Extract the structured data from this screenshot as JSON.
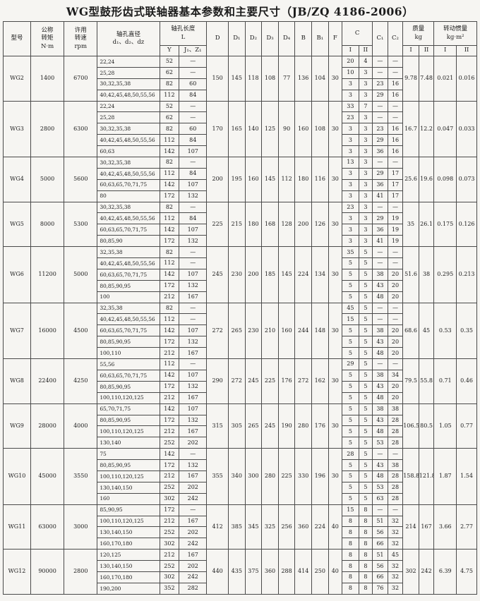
{
  "title": "WG型鼓形齿式联轴器基本参数和主要尺寸",
  "standard": "（JB/ZQ 4186-2006）",
  "columns": {
    "model": "型号",
    "torque": "公称\n转矩\nN·m",
    "speed": "许用\n转速\nrpm",
    "bore_diameter": "轴孔直径\nd₁、d₂、dz",
    "bore_length": "轴孔长度\nL",
    "y": "Y",
    "j_z": "J₁、Z₁",
    "dims": [
      "D",
      "D₁",
      "D₂",
      "D₃",
      "D₄",
      "B",
      "B₁",
      "F"
    ],
    "c": "C",
    "c1": "C₁",
    "c2": "C₂",
    "mass": "质量\nkg",
    "inertia": "转动惯量\nkg·m²",
    "col_i": "I",
    "col_ii": "II"
  },
  "groups": [
    {
      "model": "WG2",
      "torque": "1400",
      "speed": "6700",
      "dims": [
        "150",
        "145",
        "118",
        "108",
        "77",
        "136",
        "104",
        "30"
      ],
      "mass": [
        "9.78",
        "7.48"
      ],
      "inertia": [
        "0.021",
        "0.016"
      ],
      "rows": [
        {
          "d": "22,24",
          "y": "52",
          "j": "—",
          "ci": "20",
          "cii": "4",
          "c1": "—",
          "c2": "—"
        },
        {
          "d": "25,28",
          "y": "62",
          "j": "—",
          "ci": "10",
          "cii": "3",
          "c1": "—",
          "c2": "—"
        },
        {
          "d": "30,32,35,38",
          "y": "82",
          "j": "60",
          "ci": "3",
          "cii": "3",
          "c1": "23",
          "c2": "16"
        },
        {
          "d": "40,42,45,48,50,55,56",
          "y": "112",
          "j": "84",
          "ci": "3",
          "cii": "3",
          "c1": "29",
          "c2": "16"
        }
      ]
    },
    {
      "model": "WG3",
      "torque": "2800",
      "speed": "6300",
      "dims": [
        "170",
        "165",
        "140",
        "125",
        "90",
        "160",
        "108",
        "30"
      ],
      "mass": [
        "16.7",
        "12.2"
      ],
      "inertia": [
        "0.047",
        "0.033"
      ],
      "rows": [
        {
          "d": "22,24",
          "y": "52",
          "j": "—",
          "ci": "33",
          "cii": "7",
          "c1": "—",
          "c2": "—"
        },
        {
          "d": "25,28",
          "y": "62",
          "j": "—",
          "ci": "23",
          "cii": "3",
          "c1": "—",
          "c2": "—"
        },
        {
          "d": "30,32,35,38",
          "y": "82",
          "j": "60",
          "ci": "3",
          "cii": "3",
          "c1": "23",
          "c2": "16"
        },
        {
          "d": "40,42,45,48,50,55,56",
          "y": "112",
          "j": "84",
          "ci": "3",
          "cii": "3",
          "c1": "29",
          "c2": "16"
        },
        {
          "d": "60,63",
          "y": "142",
          "j": "107",
          "ci": "3",
          "cii": "3",
          "c1": "36",
          "c2": "16"
        }
      ]
    },
    {
      "model": "WG4",
      "torque": "5000",
      "speed": "5600",
      "dims": [
        "200",
        "195",
        "160",
        "145",
        "112",
        "180",
        "116",
        "30"
      ],
      "mass": [
        "25.6",
        "19.6"
      ],
      "inertia": [
        "0.098",
        "0.073"
      ],
      "rows": [
        {
          "d": "30,32,35,38",
          "y": "82",
          "j": "—",
          "ci": "13",
          "cii": "3",
          "c1": "—",
          "c2": "—"
        },
        {
          "d": "40,42,45,48,50,55,56",
          "y": "112",
          "j": "84",
          "ci": "3",
          "cii": "3",
          "c1": "29",
          "c2": "17"
        },
        {
          "d": "60,63,65,70,71,75",
          "y": "142",
          "j": "107",
          "ci": "3",
          "cii": "3",
          "c1": "36",
          "c2": "17"
        },
        {
          "d": "80",
          "y": "172",
          "j": "132",
          "ci": "3",
          "cii": "3",
          "c1": "41",
          "c2": "17"
        }
      ]
    },
    {
      "model": "WG5",
      "torque": "8000",
      "speed": "5300",
      "dims": [
        "225",
        "215",
        "180",
        "168",
        "128",
        "200",
        "126",
        "30"
      ],
      "mass": [
        "35",
        "26.1"
      ],
      "inertia": [
        "0.175",
        "0.126"
      ],
      "rows": [
        {
          "d": "30,32,35,38",
          "y": "82",
          "j": "—",
          "ci": "23",
          "cii": "3",
          "c1": "—",
          "c2": "—"
        },
        {
          "d": "40,42,45,48,50,55,56",
          "y": "112",
          "j": "84",
          "ci": "3",
          "cii": "3",
          "c1": "29",
          "c2": "19"
        },
        {
          "d": "60,63,65,70,71,75",
          "y": "142",
          "j": "107",
          "ci": "3",
          "cii": "3",
          "c1": "36",
          "c2": "19"
        },
        {
          "d": "80,85,90",
          "y": "172",
          "j": "132",
          "ci": "3",
          "cii": "3",
          "c1": "41",
          "c2": "19"
        }
      ]
    },
    {
      "model": "WG6",
      "torque": "11200",
      "speed": "5000",
      "dims": [
        "245",
        "230",
        "200",
        "185",
        "145",
        "224",
        "134",
        "30"
      ],
      "mass": [
        "51.6",
        "38"
      ],
      "inertia": [
        "0.295",
        "0.213"
      ],
      "rows": [
        {
          "d": "32,35,38",
          "y": "82",
          "j": "—",
          "ci": "35",
          "cii": "5",
          "c1": "—",
          "c2": "—"
        },
        {
          "d": "40,42,45,48,50,55,56",
          "y": "112",
          "j": "—",
          "ci": "5",
          "cii": "5",
          "c1": "—",
          "c2": "—"
        },
        {
          "d": "60,63,65,70,71,75",
          "y": "142",
          "j": "107",
          "ci": "5",
          "cii": "5",
          "c1": "38",
          "c2": "20"
        },
        {
          "d": "80,85,90,95",
          "y": "172",
          "j": "132",
          "ci": "5",
          "cii": "5",
          "c1": "43",
          "c2": "20"
        },
        {
          "d": "100",
          "y": "212",
          "j": "167",
          "ci": "5",
          "cii": "5",
          "c1": "48",
          "c2": "20"
        }
      ]
    },
    {
      "model": "WG7",
      "torque": "16000",
      "speed": "4500",
      "dims": [
        "272",
        "265",
        "230",
        "210",
        "160",
        "244",
        "148",
        "30"
      ],
      "mass": [
        "68.6",
        "45"
      ],
      "inertia": [
        "0.53",
        "0.35"
      ],
      "rows": [
        {
          "d": "32,35,38",
          "y": "82",
          "j": "—",
          "ci": "45",
          "cii": "5",
          "c1": "—",
          "c2": "—"
        },
        {
          "d": "40,42,45,48,50,55,56",
          "y": "112",
          "j": "—",
          "ci": "15",
          "cii": "5",
          "c1": "—",
          "c2": "—"
        },
        {
          "d": "60,63,65,70,71,75",
          "y": "142",
          "j": "107",
          "ci": "5",
          "cii": "5",
          "c1": "38",
          "c2": "20"
        },
        {
          "d": "80,85,90,95",
          "y": "172",
          "j": "132",
          "ci": "5",
          "cii": "5",
          "c1": "43",
          "c2": "20"
        },
        {
          "d": "100,110",
          "y": "212",
          "j": "167",
          "ci": "5",
          "cii": "5",
          "c1": "48",
          "c2": "20"
        }
      ]
    },
    {
      "model": "WG8",
      "torque": "22400",
      "speed": "4250",
      "dims": [
        "290",
        "272",
        "245",
        "225",
        "176",
        "272",
        "162",
        "30"
      ],
      "mass": [
        "79.5",
        "55.8"
      ],
      "inertia": [
        "0.71",
        "0.46"
      ],
      "rows": [
        {
          "d": "55,56",
          "y": "112",
          "j": "—",
          "ci": "29",
          "cii": "5",
          "c1": "—",
          "c2": "—"
        },
        {
          "d": "60,63,65,70,71,75",
          "y": "142",
          "j": "107",
          "ci": "5",
          "cii": "5",
          "c1": "38",
          "c2": "34"
        },
        {
          "d": "80,85,90,95",
          "y": "172",
          "j": "132",
          "ci": "5",
          "cii": "5",
          "c1": "43",
          "c2": "20"
        },
        {
          "d": "100,110,120,125",
          "y": "212",
          "j": "167",
          "ci": "5",
          "cii": "5",
          "c1": "48",
          "c2": "20"
        }
      ]
    },
    {
      "model": "WG9",
      "torque": "28000",
      "speed": "4000",
      "dims": [
        "315",
        "305",
        "265",
        "245",
        "190",
        "280",
        "176",
        "30"
      ],
      "mass": [
        "106.5",
        "80.5"
      ],
      "inertia": [
        "1.05",
        "0.77"
      ],
      "rows": [
        {
          "d": "65,70,71,75",
          "y": "142",
          "j": "107",
          "ci": "5",
          "cii": "5",
          "c1": "38",
          "c2": "38"
        },
        {
          "d": "80,85,90,95",
          "y": "172",
          "j": "132",
          "ci": "5",
          "cii": "5",
          "c1": "43",
          "c2": "28"
        },
        {
          "d": "100,110,120,125",
          "y": "212",
          "j": "167",
          "ci": "5",
          "cii": "5",
          "c1": "48",
          "c2": "28"
        },
        {
          "d": "130,140",
          "y": "252",
          "j": "202",
          "ci": "5",
          "cii": "5",
          "c1": "53",
          "c2": "28"
        }
      ]
    },
    {
      "model": "WG10",
      "torque": "45000",
      "speed": "3550",
      "dims": [
        "355",
        "340",
        "300",
        "280",
        "225",
        "330",
        "196",
        "30"
      ],
      "mass": [
        "158.8",
        "121.8"
      ],
      "inertia": [
        "1.87",
        "1.54"
      ],
      "rows": [
        {
          "d": "75",
          "y": "142",
          "j": "—",
          "ci": "28",
          "cii": "5",
          "c1": "—",
          "c2": "—"
        },
        {
          "d": "80,85,90,95",
          "y": "172",
          "j": "132",
          "ci": "5",
          "cii": "5",
          "c1": "43",
          "c2": "38"
        },
        {
          "d": "100,110,120,125",
          "y": "212",
          "j": "167",
          "ci": "5",
          "cii": "5",
          "c1": "48",
          "c2": "28"
        },
        {
          "d": "130,140,150",
          "y": "252",
          "j": "202",
          "ci": "5",
          "cii": "5",
          "c1": "53",
          "c2": "28"
        },
        {
          "d": "160",
          "y": "302",
          "j": "242",
          "ci": "5",
          "cii": "5",
          "c1": "63",
          "c2": "28"
        }
      ]
    },
    {
      "model": "WG11",
      "torque": "63000",
      "speed": "3000",
      "dims": [
        "412",
        "385",
        "345",
        "325",
        "256",
        "360",
        "224",
        "40"
      ],
      "mass": [
        "214",
        "167"
      ],
      "inertia": [
        "3.66",
        "2.77"
      ],
      "rows": [
        {
          "d": "85,90,95",
          "y": "172",
          "j": "—",
          "ci": "15",
          "cii": "8",
          "c1": "—",
          "c2": "—"
        },
        {
          "d": "100,110,120,125",
          "y": "212",
          "j": "167",
          "ci": "8",
          "cii": "8",
          "c1": "51",
          "c2": "32"
        },
        {
          "d": "130,140,150",
          "y": "252",
          "j": "202",
          "ci": "8",
          "cii": "8",
          "c1": "56",
          "c2": "32"
        },
        {
          "d": "160,170,180",
          "y": "302",
          "j": "242",
          "ci": "8",
          "cii": "8",
          "c1": "66",
          "c2": "32"
        }
      ]
    },
    {
      "model": "WG12",
      "torque": "90000",
      "speed": "2800",
      "dims": [
        "440",
        "435",
        "375",
        "360",
        "288",
        "414",
        "250",
        "40"
      ],
      "mass": [
        "302",
        "242"
      ],
      "inertia": [
        "6.39",
        "4.75"
      ],
      "rows": [
        {
          "d": "120,125",
          "y": "212",
          "j": "167",
          "ci": "8",
          "cii": "8",
          "c1": "51",
          "c2": "45"
        },
        {
          "d": "130,140,150",
          "y": "252",
          "j": "202",
          "ci": "8",
          "cii": "8",
          "c1": "56",
          "c2": "32"
        },
        {
          "d": "160,170,180",
          "y": "302",
          "j": "242",
          "ci": "8",
          "cii": "8",
          "c1": "66",
          "c2": "32"
        },
        {
          "d": "190,200",
          "y": "352",
          "j": "282",
          "ci": "8",
          "cii": "8",
          "c1": "76",
          "c2": "32"
        }
      ]
    }
  ]
}
